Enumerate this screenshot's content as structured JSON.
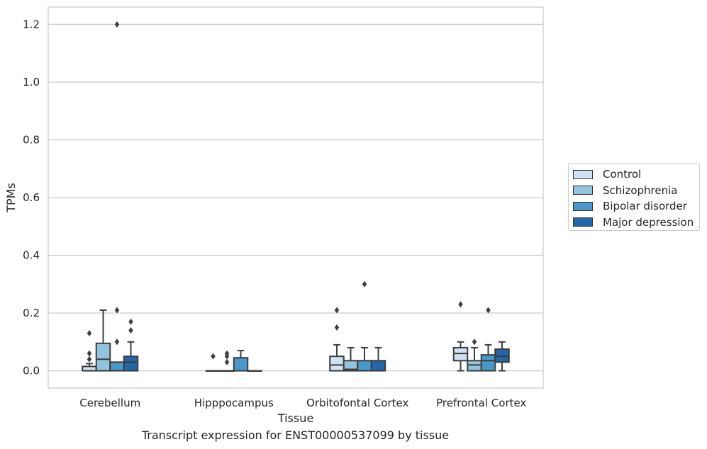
{
  "chart_data": {
    "type": "box",
    "title": "Transcript expression for ENST00000537099 by tissue",
    "xlabel": "Tissue",
    "ylabel": "TPMs",
    "ylim": [
      -0.06,
      1.26
    ],
    "yticks": [
      "0.0",
      "0.2",
      "0.4",
      "0.6",
      "0.8",
      "1.0",
      "1.2"
    ],
    "grid": true,
    "legend_position": "right",
    "categories": [
      "Cerebellum",
      "Hipppocampus",
      "Orbitofontal Cortex",
      "Prefrontal Cortex"
    ],
    "series": [
      {
        "name": "Control",
        "color": "#cfe1f2",
        "boxes": [
          {
            "whislo": 0.0,
            "q1": 0.0,
            "med": 0.0,
            "q3": 0.015,
            "whishi": 0.025,
            "fliers": [
              0.04,
              0.06,
              0.13
            ]
          },
          {
            "whislo": 0.0,
            "q1": 0.0,
            "med": 0.0,
            "q3": 0.0,
            "whishi": 0.0,
            "fliers": [
              0.05
            ]
          },
          {
            "whislo": 0.0,
            "q1": 0.0,
            "med": 0.02,
            "q3": 0.05,
            "whishi": 0.09,
            "fliers": [
              0.15,
              0.21
            ]
          },
          {
            "whislo": 0.0,
            "q1": 0.035,
            "med": 0.06,
            "q3": 0.08,
            "whishi": 0.1,
            "fliers": [
              0.23
            ]
          }
        ]
      },
      {
        "name": "Schizophrenia",
        "color": "#93c4de",
        "boxes": [
          {
            "whislo": 0.0,
            "q1": 0.0,
            "med": 0.04,
            "q3": 0.095,
            "whishi": 0.21,
            "fliers": []
          },
          {
            "whislo": 0.0,
            "q1": 0.0,
            "med": 0.0,
            "q3": 0.0,
            "whishi": 0.0,
            "fliers": [
              0.03,
              0.05,
              0.06
            ]
          },
          {
            "whislo": 0.0,
            "q1": 0.0,
            "med": 0.005,
            "q3": 0.035,
            "whishi": 0.08,
            "fliers": []
          },
          {
            "whislo": 0.0,
            "q1": 0.0,
            "med": 0.02,
            "q3": 0.035,
            "whishi": 0.08,
            "fliers": [
              0.1
            ]
          }
        ]
      },
      {
        "name": "Bipolar disorder",
        "color": "#4a98c9",
        "boxes": [
          {
            "whislo": 0.0,
            "q1": 0.0,
            "med": 0.0,
            "q3": 0.03,
            "whishi": 0.03,
            "fliers": [
              0.1,
              0.21,
              1.2
            ]
          },
          {
            "whislo": 0.0,
            "q1": 0.0,
            "med": 0.0,
            "q3": 0.045,
            "whishi": 0.07,
            "fliers": []
          },
          {
            "whislo": 0.0,
            "q1": 0.0,
            "med": 0.0,
            "q3": 0.035,
            "whishi": 0.08,
            "fliers": [
              0.3
            ]
          },
          {
            "whislo": 0.0,
            "q1": 0.0,
            "med": 0.035,
            "q3": 0.055,
            "whishi": 0.09,
            "fliers": [
              0.21
            ]
          }
        ]
      },
      {
        "name": "Major depression",
        "color": "#2466a8",
        "boxes": [
          {
            "whislo": 0.0,
            "q1": 0.0,
            "med": 0.03,
            "q3": 0.05,
            "whishi": 0.1,
            "fliers": [
              0.14,
              0.17
            ]
          },
          {
            "whislo": 0.0,
            "q1": 0.0,
            "med": 0.0,
            "q3": 0.0,
            "whishi": 0.0,
            "fliers": []
          },
          {
            "whislo": 0.0,
            "q1": 0.0,
            "med": 0.0,
            "q3": 0.035,
            "whishi": 0.08,
            "fliers": []
          },
          {
            "whislo": 0.0,
            "q1": 0.03,
            "med": 0.05,
            "q3": 0.075,
            "whishi": 0.1,
            "fliers": []
          }
        ]
      }
    ]
  }
}
